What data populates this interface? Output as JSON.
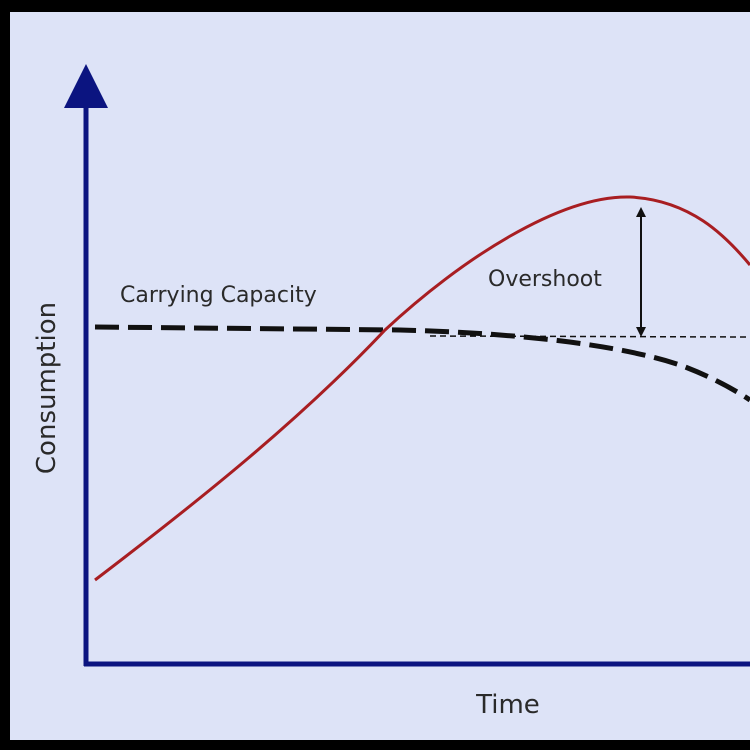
{
  "labels": {
    "y_axis": "Consumption",
    "x_axis": "Time",
    "carrying_capacity": "Carrying Capacity",
    "overshoot": "Overshoot"
  }
}
